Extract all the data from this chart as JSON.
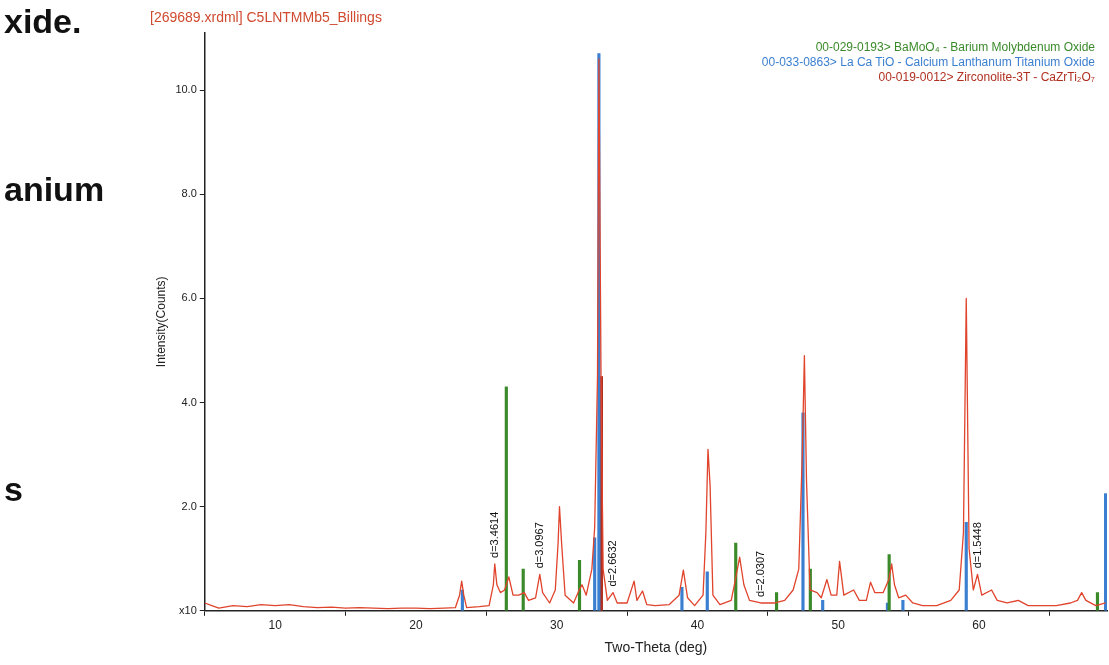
{
  "chart_data": {
    "type": "line",
    "title": "[269689.xrdml] C5LNTMMb5_Billings",
    "xlabel": "Two-Theta (deg)",
    "ylabel": "Intensity(Counts)",
    "xlim": [
      5,
      69.1
    ],
    "xticks": [
      10,
      20,
      30,
      40,
      50,
      60
    ],
    "ylim": [
      0,
      11.1
    ],
    "yticks": [
      {
        "value": 0,
        "label": "x10"
      },
      {
        "value": 2,
        "label": "2.0"
      },
      {
        "value": 4,
        "label": "4.0"
      },
      {
        "value": 6,
        "label": "6.0"
      },
      {
        "value": 8,
        "label": "8.0"
      },
      {
        "value": 10,
        "label": "10.0"
      }
    ],
    "grid": false,
    "legend": "top right",
    "marker": "none",
    "line_style": "solid",
    "annotations": [
      "xide.",
      "anium",
      "s",
      {
        "text": "d=3.4614",
        "x": 25.6,
        "y": 0.9
      },
      {
        "text": "d=3.0967",
        "x": 28.8,
        "y": 0.7
      },
      {
        "text": "d=2.6632",
        "x": 34.0,
        "y": 0.35
      },
      {
        "text": "d=2.0307",
        "x": 44.5,
        "y": 0.15
      },
      {
        "text": "d=1.5448",
        "x": 59.9,
        "y": 0.7
      }
    ],
    "series": [
      {
        "color": "#e0442c",
        "x": [
          5,
          5.5,
          6,
          7,
          8,
          9,
          10,
          11,
          12,
          13,
          14,
          15,
          16,
          17,
          18,
          19,
          20,
          21,
          22,
          22.8,
          23.1,
          23.25,
          23.4,
          23.6,
          24.5,
          25.2,
          25.5,
          25.6,
          25.75,
          26.0,
          26.3,
          26.6,
          26.9,
          27.3,
          27.7,
          28.0,
          28.5,
          28.8,
          29.0,
          29.5,
          29.9,
          30.1,
          30.2,
          30.35,
          30.6,
          31.2,
          31.6,
          31.8,
          32.1,
          32.5,
          32.7,
          32.9,
          33.0,
          33.15,
          33.3,
          33.6,
          34.0,
          34.3,
          35.0,
          35.5,
          35.7,
          36.1,
          36.4,
          37,
          38,
          38.7,
          39.0,
          39.3,
          39.8,
          40.4,
          40.6,
          40.75,
          40.9,
          41.1,
          41.6,
          42.4,
          42.7,
          43.0,
          43.3,
          43.7,
          44.5,
          45.5,
          46.2,
          46.8,
          47.2,
          47.45,
          47.6,
          47.75,
          48.0,
          48.5,
          48.8,
          49.2,
          49.5,
          49.9,
          50.1,
          50.4,
          51.1,
          51.5,
          52.0,
          52.3,
          52.6,
          53.2,
          53.6,
          53.8,
          54.0,
          54.3,
          54.8,
          55.3,
          56,
          57,
          58,
          58.6,
          58.9,
          59.1,
          59.3,
          59.6,
          59.9,
          60.2,
          60.9,
          61.3,
          62,
          62.8,
          63.5,
          64.5,
          65.5,
          66.5,
          67.0,
          67.3,
          67.6,
          68.3,
          69
        ],
        "values": [
          0.15,
          0.1,
          0.05,
          0.1,
          0.08,
          0.12,
          0.1,
          0.12,
          0.08,
          0.06,
          0.07,
          0.05,
          0.06,
          0.05,
          0.04,
          0.05,
          0.05,
          0.04,
          0.05,
          0.06,
          0.3,
          0.57,
          0.3,
          0.06,
          0.08,
          0.1,
          0.5,
          0.9,
          0.5,
          0.35,
          0.4,
          0.65,
          0.3,
          0.3,
          0.35,
          0.2,
          0.25,
          0.7,
          0.35,
          0.15,
          0.4,
          1.3,
          2.0,
          1.3,
          0.3,
          0.15,
          0.4,
          0.5,
          0.3,
          0.8,
          1.6,
          4.5,
          10.6,
          4.5,
          0.8,
          0.2,
          0.35,
          0.15,
          0.15,
          0.57,
          0.2,
          0.38,
          0.12,
          0.1,
          0.12,
          0.3,
          0.78,
          0.25,
          0.1,
          0.3,
          1.5,
          3.1,
          2.4,
          0.3,
          0.12,
          0.2,
          0.6,
          1.03,
          0.5,
          0.2,
          0.15,
          0.15,
          0.2,
          0.4,
          0.8,
          3.0,
          4.9,
          2.5,
          0.4,
          0.35,
          0.25,
          0.6,
          0.3,
          0.3,
          0.95,
          0.3,
          0.4,
          0.2,
          0.2,
          0.55,
          0.35,
          0.35,
          0.6,
          0.9,
          0.5,
          0.25,
          0.3,
          0.15,
          0.1,
          0.1,
          0.2,
          0.4,
          1.5,
          6.0,
          1.2,
          0.4,
          0.7,
          0.3,
          0.4,
          0.2,
          0.15,
          0.2,
          0.1,
          0.1,
          0.1,
          0.15,
          0.2,
          0.35,
          0.2,
          0.1,
          0.15
        ]
      },
      {
        "type": "bar",
        "name": "00-029-0193> BaMoO₄ - Barium Molybdenum Oxide",
        "color": "#3a8a2a",
        "x": [
          26.6,
          27.8,
          31.8,
          42.9,
          45.8,
          48.2,
          53.8,
          68.6
        ],
        "values": [
          4.3,
          0.8,
          0.97,
          1.3,
          0.35,
          0.8,
          1.08,
          0.35
        ]
      },
      {
        "type": "bar",
        "name": "00-033-0863> La Ca TiO - Calcium Lanthanum Titanium Oxide",
        "color": "#3b7fd0",
        "x": [
          23.3,
          32.7,
          33.0,
          38.9,
          40.7,
          47.5,
          48.9,
          53.5,
          54.6,
          59.1,
          69.0
        ],
        "values": [
          0.4,
          1.4,
          10.7,
          0.45,
          0.75,
          3.8,
          0.2,
          0.15,
          0.2,
          1.7,
          2.25
        ]
      },
      {
        "type": "bar",
        "name": "00-019-0012> Zirconolite-3T - CaZrTi₂O₇",
        "color": "#b03020",
        "x": [
          33.0
        ],
        "values": [
          4.5
        ]
      }
    ]
  }
}
